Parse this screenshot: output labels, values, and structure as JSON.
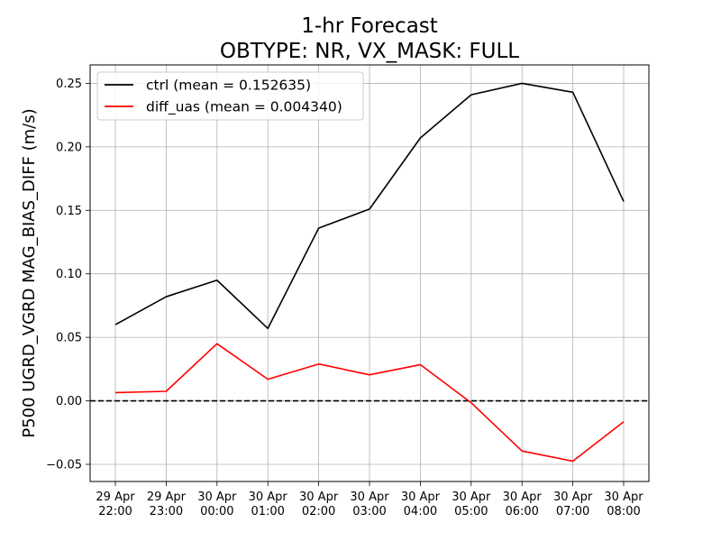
{
  "chart_data": {
    "type": "line",
    "title_line1": "1-hr Forecast",
    "title_line2": "OBTYPE: NR,  VX_MASK: FULL",
    "xlabel": "",
    "ylabel": "P500 UGRD_VGRD MAG_BIAS_DIFF (m/s)",
    "categories": [
      [
        "29 Apr",
        "22:00"
      ],
      [
        "29 Apr",
        "23:00"
      ],
      [
        "30 Apr",
        "00:00"
      ],
      [
        "30 Apr",
        "01:00"
      ],
      [
        "30 Apr",
        "02:00"
      ],
      [
        "30 Apr",
        "03:00"
      ],
      [
        "30 Apr",
        "04:00"
      ],
      [
        "30 Apr",
        "05:00"
      ],
      [
        "30 Apr",
        "06:00"
      ],
      [
        "30 Apr",
        "07:00"
      ],
      [
        "30 Apr",
        "08:00"
      ]
    ],
    "ylim": [
      -0.0635,
      0.2645
    ],
    "yticks": [
      -0.05,
      0.0,
      0.05,
      0.1,
      0.15,
      0.2,
      0.25
    ],
    "ytick_labels": [
      "−0.05",
      "0.00",
      "0.05",
      "0.10",
      "0.15",
      "0.20",
      "0.25"
    ],
    "grid": true,
    "legend_position": "top-left",
    "zero_line": {
      "y": 0,
      "style": "dashed",
      "color": "#000000"
    },
    "series": [
      {
        "name": "ctrl (mean = 0.152635)",
        "color": "#000000",
        "values": [
          0.06,
          0.082,
          0.095,
          0.057,
          0.136,
          0.151,
          0.207,
          0.241,
          0.25,
          0.243,
          0.157
        ]
      },
      {
        "name": "diff_uas (mean = 0.004340)",
        "color": "#ff0000",
        "values": [
          0.0065,
          0.0075,
          0.045,
          0.017,
          0.029,
          0.0205,
          0.0285,
          -0.0015,
          -0.0395,
          -0.0475,
          -0.0165
        ]
      }
    ]
  }
}
